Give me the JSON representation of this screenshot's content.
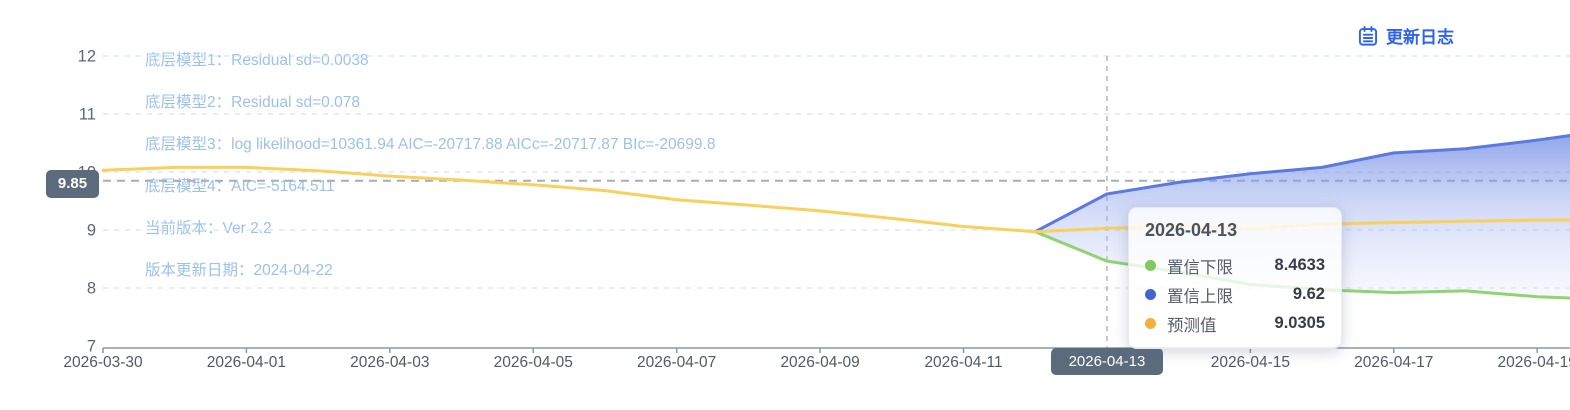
{
  "header": {
    "update_log_label": "更新日志",
    "update_log_color": "#2f62ee"
  },
  "annotations": {
    "items": [
      "底层模型1：Residual sd=0.0038",
      "底层模型2：Residual sd=0.078",
      "底层模型3：log likelihood=10361.94 AIC=-20717.88 AICc=-20717.87 BIc=-20699.8",
      "底层模型4：AIC=-5164.511",
      "当前版本：Ver 2.2",
      "版本更新日期：2024-04-22"
    ]
  },
  "chart_data": {
    "type": "line",
    "title": "",
    "xlabel": "",
    "ylabel": "",
    "ylim": [
      7,
      12
    ],
    "y_ticks": [
      7,
      8,
      9,
      10,
      11,
      12
    ],
    "grid": "dashed horizontal, light blue",
    "legend_position": "none (tooltip only)",
    "x": [
      "2026-03-30",
      "2026-03-31",
      "2026-04-01",
      "2026-04-02",
      "2026-04-03",
      "2026-04-04",
      "2026-04-05",
      "2026-04-06",
      "2026-04-07",
      "2026-04-08",
      "2026-04-09",
      "2026-04-10",
      "2026-04-11",
      "2026-04-12",
      "2026-04-13",
      "2026-04-14",
      "2026-04-15",
      "2026-04-16",
      "2026-04-17",
      "2026-04-18",
      "2026-04-19",
      "2026-04-20"
    ],
    "x_tick_step_days": 2,
    "series": [
      {
        "id": "upper-bound",
        "name": "置信上限",
        "color": "#5b79e0",
        "width": 3,
        "values": [
          null,
          null,
          null,
          null,
          null,
          null,
          null,
          null,
          null,
          null,
          null,
          null,
          null,
          8.97,
          9.62,
          9.82,
          9.97,
          10.08,
          10.33,
          10.4,
          10.55,
          10.72
        ]
      },
      {
        "id": "lower-bound",
        "name": "置信下限",
        "color": "#8fd470",
        "width": 3,
        "values": [
          null,
          null,
          null,
          null,
          null,
          null,
          null,
          null,
          null,
          null,
          null,
          null,
          null,
          8.97,
          8.4633,
          8.28,
          8.06,
          7.97,
          7.92,
          7.95,
          7.85,
          7.8
        ]
      },
      {
        "id": "forecast",
        "name": "预测值",
        "color": "#f9d05c",
        "width": 3,
        "values": [
          10.03,
          10.08,
          10.08,
          10.02,
          9.93,
          9.86,
          9.78,
          9.68,
          9.52,
          9.43,
          9.33,
          9.2,
          9.06,
          8.97,
          9.0305,
          9.06,
          9.02,
          9.1,
          9.13,
          9.15,
          9.17,
          9.18
        ]
      }
    ],
    "band": {
      "upper": "置信上限",
      "lower": "置信下限",
      "fill_top": "rgba(90,119,224,0.72)",
      "fill_mid": "rgba(151,170,238,0.45)",
      "fill_bottom": "rgba(233,238,252,0.25)"
    },
    "reference_lines": {
      "y": 9.85,
      "y_label": "9.85",
      "x": "2026-04-13"
    },
    "highlighted_x_label": "2026-04-13"
  },
  "tooltip": {
    "title": "2026-04-13",
    "rows": [
      {
        "label": "置信下限",
        "value": "8.4633",
        "color": "#83c960"
      },
      {
        "label": "置信上限",
        "value": "9.62",
        "color": "#4365d2"
      },
      {
        "label": "预测值",
        "value": "9.0305",
        "color": "#f5af3d"
      }
    ]
  }
}
